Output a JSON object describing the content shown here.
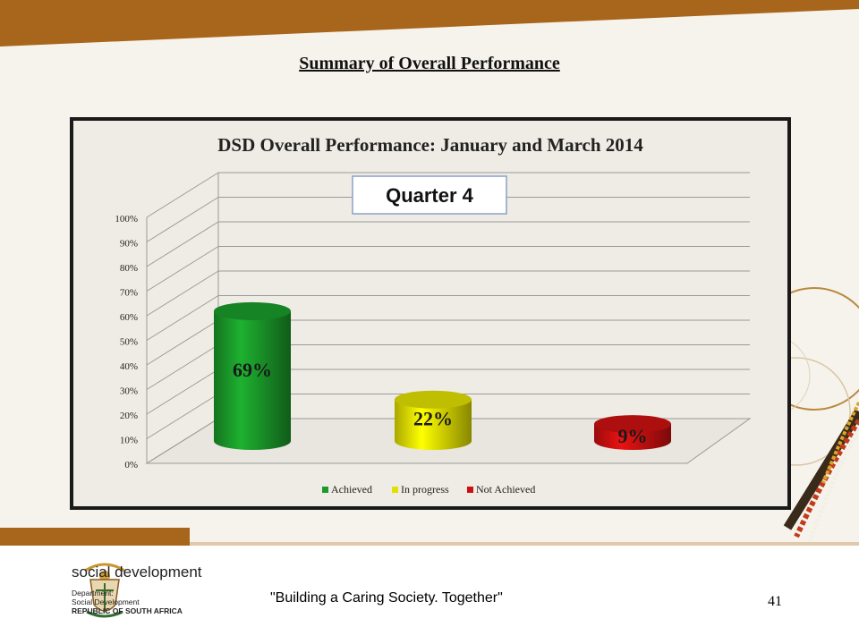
{
  "slide": {
    "title": "Summary of Overall Performance",
    "tagline": "\"Building a Caring Society. Together\"",
    "page_number": "41"
  },
  "logo": {
    "name": "social development",
    "line1": "Department:",
    "line2": "Social Development",
    "line3": "REPUBLIC OF SOUTH AFRICA"
  },
  "colors": {
    "band": "#a8651c",
    "achieved": "#1a9a2a",
    "in_progress": "#e2e000",
    "not_achieved": "#cc1010"
  },
  "chart_data": {
    "type": "bar",
    "title": "DSD Overall Performance: January and March 2014",
    "annotation": "Quarter 4",
    "categories": [
      "Achieved",
      "In progress",
      "Not Achieved"
    ],
    "values": [
      69,
      22,
      9
    ],
    "data_labels": [
      "69%",
      "22%",
      "9%"
    ],
    "series_colors": [
      "#1a9a2a",
      "#e2e000",
      "#cc1010"
    ],
    "ylim": [
      0,
      100
    ],
    "yticks": [
      "0%",
      "10%",
      "20%",
      "30%",
      "40%",
      "50%",
      "60%",
      "70%",
      "80%",
      "90%",
      "100%"
    ],
    "legend": [
      "Achieved",
      "In progress",
      "Not Achieved"
    ],
    "legend_position": "bottom",
    "grid": true,
    "style": "3d-cylinder"
  }
}
